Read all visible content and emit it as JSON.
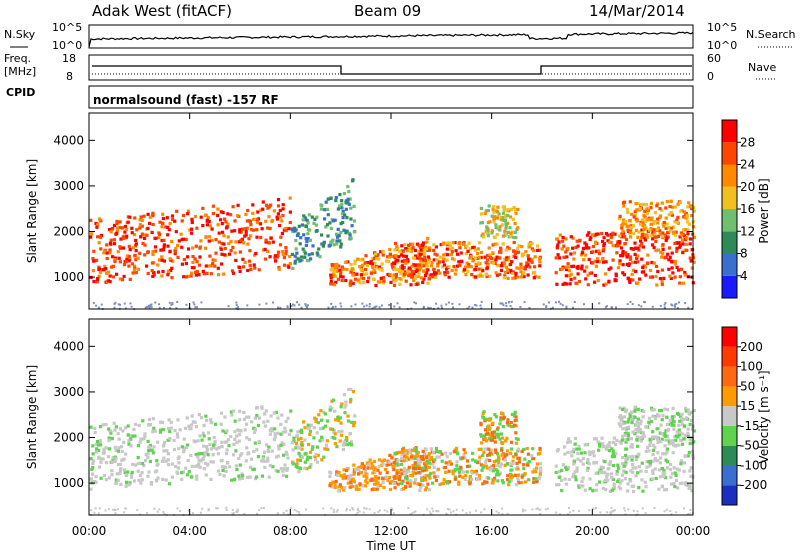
{
  "header": {
    "left": "Adak West (fitACF)",
    "center": "Beam 09",
    "right": "14/Mar/2014"
  },
  "top_panels": {
    "nsky_label": "N.Sky",
    "nsky_ticks": [
      "10^5",
      "10^0"
    ],
    "nsearch_label": "N.Search",
    "freq_label_1": "Freq.",
    "freq_label_2": "[MHz]",
    "freq_ticks": [
      "18",
      "8"
    ],
    "nave_ticks": [
      "60",
      "0"
    ],
    "nave_label": "Nave",
    "cpid_label": "CPID",
    "cpid_text": "normalsound (fast) -157 RF"
  },
  "chart_data": [
    {
      "type": "heatmap",
      "name": "power",
      "ylabel": "Slant Range [km]",
      "yticks": [
        "1000",
        "2000",
        "3000",
        "4000"
      ],
      "ylim": [
        300,
        4600
      ],
      "xlim_hours": [
        0,
        24
      ],
      "colorbar": {
        "label": "Power [dB]",
        "ticks": [
          "4",
          "8",
          "12",
          "16",
          "20",
          "24",
          "28"
        ],
        "colors": [
          "#1a1aff",
          "#3a6fd0",
          "#2e8b57",
          "#6fbf6f",
          "#f0c020",
          "#ff8a00",
          "#ff4500",
          "#ff0000"
        ]
      }
    },
    {
      "type": "heatmap",
      "name": "velocity",
      "ylabel": "Slant Range [km]",
      "yticks": [
        "1000",
        "2000",
        "3000",
        "4000"
      ],
      "ylim": [
        300,
        4600
      ],
      "xlim_hours": [
        0,
        24
      ],
      "colorbar": {
        "label": "Velocity [m s⁻¹]",
        "ticks": [
          "200",
          "100",
          "50",
          "15",
          "-15",
          "-50",
          "-100",
          "-200"
        ],
        "colors": [
          "#1a2fbf",
          "#3a6fd0",
          "#2e8b57",
          "#5fd34f",
          "#c8c8c8",
          "#ff9a00",
          "#ff6a10",
          "#ff3a00",
          "#ff0000"
        ]
      }
    }
  ],
  "xaxis": {
    "ticks": [
      "00:00",
      "04:00",
      "08:00",
      "12:00",
      "16:00",
      "20:00",
      "00:00"
    ],
    "label": "Time UT"
  }
}
